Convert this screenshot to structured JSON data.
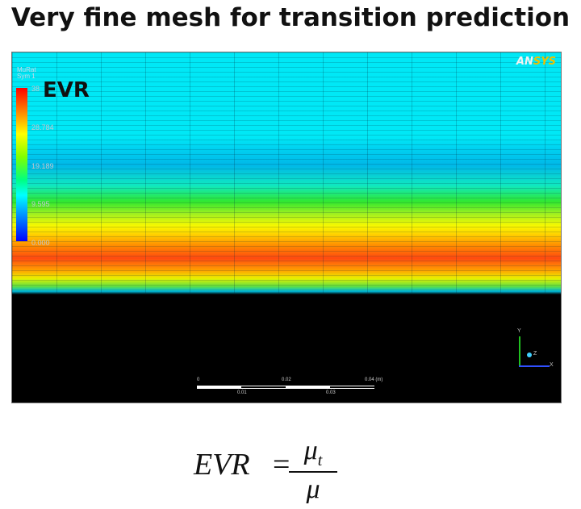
{
  "title": "Very fine mesh for transition prediction",
  "viewer": {
    "legend": {
      "variable": "MuRat",
      "location": "Sym 1",
      "max": "38",
      "ticks": [
        "28.784",
        "19.189",
        "9.595",
        "0.000"
      ]
    },
    "overlay_label": "EVR",
    "logo": {
      "part1": "AN",
      "part2": "SYS"
    },
    "scale": {
      "top": [
        "0",
        "0.02",
        "0.04 (m)"
      ],
      "bottom": [
        "0.01",
        "0.03"
      ]
    },
    "axes": {
      "y": "Y",
      "x": "X",
      "z": "Z"
    }
  },
  "formula": {
    "lhs": "EVR",
    "eq": "=",
    "numerator": "μ",
    "numerator_sub": "t",
    "denominator": "μ"
  },
  "colors": {
    "freestream": "#00e8f6",
    "peak": "#ff4a10",
    "background": "#000000"
  }
}
